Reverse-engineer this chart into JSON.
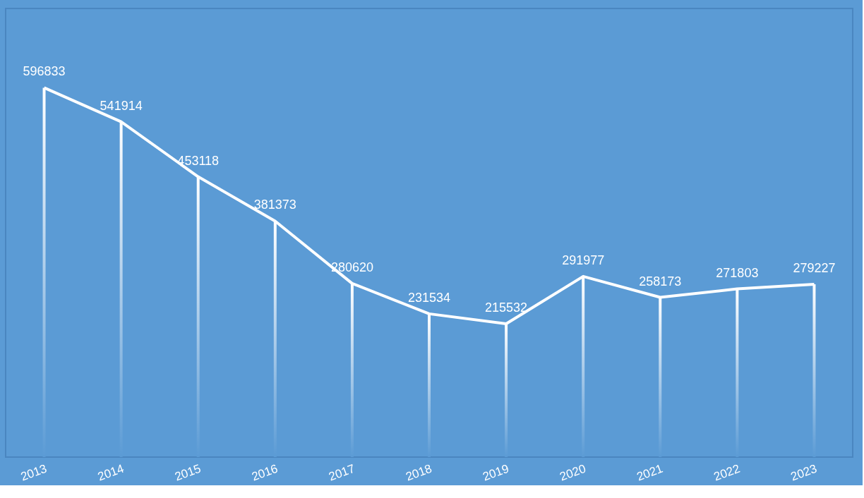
{
  "chart_data": {
    "type": "bar",
    "categories": [
      "2013",
      "2014",
      "2015",
      "2016",
      "2017",
      "2018",
      "2019",
      "2020",
      "2021",
      "2022",
      "2023"
    ],
    "series": [
      {
        "color": "#ffffff",
        "values": [
          596833,
          541914,
          453118,
          381373,
          280620,
          231534,
          215532,
          291977,
          258173,
          271803,
          279227
        ],
        "value_labels": [
          "596833",
          "541914",
          "453118",
          "381373",
          "280620",
          "231534",
          "215532",
          "291977",
          "258173",
          "271803",
          "279227"
        ]
      },
      {
        "type": "line",
        "color": "#ffffff",
        "values": [
          596833,
          541914,
          453118,
          381373,
          280620,
          231534,
          215532,
          291977,
          258173,
          271803,
          279227
        ]
      }
    ],
    "ylim": [
      0,
      725000
    ],
    "tick_labels": "x",
    "grid": false,
    "marker": "none",
    "line_style": "solid"
  }
}
